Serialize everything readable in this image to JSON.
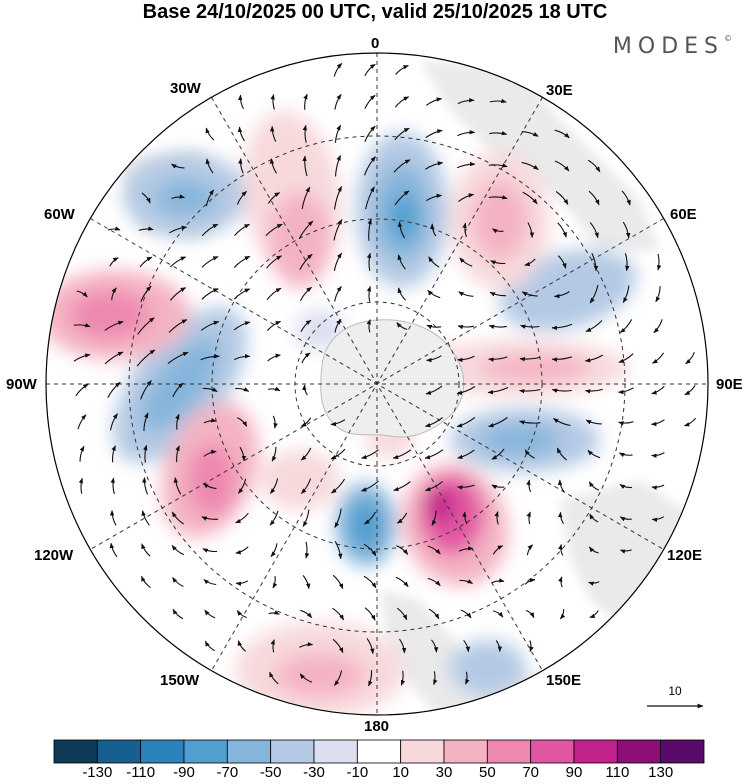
{
  "title": "Base 24/10/2025 00 UTC, valid 25/10/2025 18 UTC",
  "brand": "MODES",
  "brand_mark": "©",
  "longitude_labels": {
    "lon_0": "0",
    "lon_30e": "30E",
    "lon_60e": "60E",
    "lon_90e": "90E",
    "lon_120e": "120E",
    "lon_150e": "150E",
    "lon_180": "180",
    "lon_150w": "150W",
    "lon_120w": "120W",
    "lon_90w": "90W",
    "lon_60w": "60W",
    "lon_30w": "30W"
  },
  "colorbar": {
    "colors": [
      "#0c3a57",
      "#15608f",
      "#2b82bd",
      "#4f9fcf",
      "#86b5db",
      "#b4c9e4",
      "#dcdff0",
      "#ffffff",
      "#f7d9dc",
      "#f4b3c2",
      "#ee88b0",
      "#e256a1",
      "#c2228b",
      "#8c0e77",
      "#5a0a6a"
    ],
    "tick_labels": [
      "-130",
      "-110",
      "-90",
      "-70",
      "-50",
      "-30",
      "-10",
      "10",
      "30",
      "50",
      "70",
      "90",
      "110",
      "130"
    ]
  },
  "reference_vector": {
    "label": "10"
  }
}
